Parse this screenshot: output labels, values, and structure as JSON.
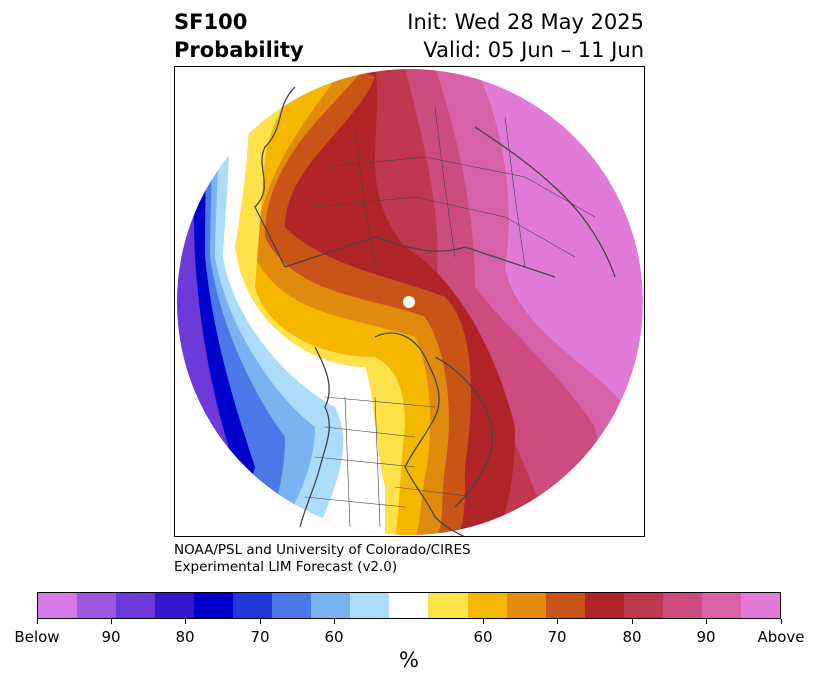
{
  "header": {
    "title_line1": "SF100",
    "title_line2": "Probability",
    "init": "Init: Wed 28 May 2025",
    "valid": "Valid: 05 Jun – 11 Jun"
  },
  "credit": {
    "line1": "NOAA/PSL and University of Colorado/CIRES",
    "line2": "Experimental LIM Forecast (v2.0)"
  },
  "colorbar": {
    "unit": "%",
    "colors": [
      "#d57ae8",
      "#9c56e0",
      "#6b3ad8",
      "#3418d0",
      "#0000cc",
      "#2238d8",
      "#4a78e6",
      "#78b2f0",
      "#acdcfa",
      "#ffffff",
      "#ffe24a",
      "#f4b800",
      "#e08a0e",
      "#c85418",
      "#b02428",
      "#c03850",
      "#cc4c80",
      "#d862a8",
      "#e27ad8"
    ],
    "ticks": [
      "Below",
      "90",
      "80",
      "70",
      "60",
      "60",
      "70",
      "80",
      "90",
      "Above"
    ]
  },
  "map": {
    "projection": "north-polar-stereographic",
    "colors": {
      "below_weak": "#acdcfa",
      "below_mid": "#78b2f0",
      "below_strong": "#0000cc",
      "above_weak": "#ffe24a",
      "above_mid": "#e08a0e",
      "above_strong": "#b02428",
      "above_max": "#e27ad8",
      "coast": "#444444"
    }
  }
}
